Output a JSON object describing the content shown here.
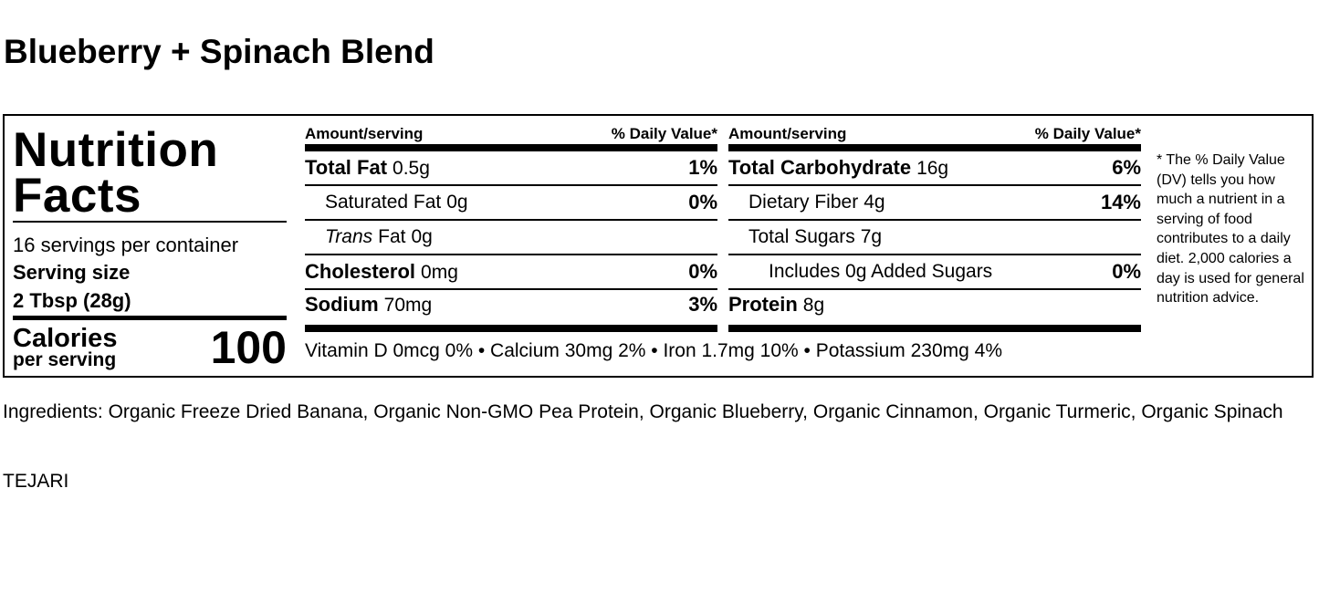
{
  "title": "Blueberry + Spinach Blend",
  "label": {
    "heading_1": "Nutrition",
    "heading_2": "Facts",
    "servings": "16 servings per container",
    "serving_size_label": "Serving size",
    "serving_size": "2 Tbsp (28g)",
    "calories_label": "Calories",
    "calories_sub": "per serving",
    "calories": 100,
    "columns": [
      {
        "header": "Amount/serving",
        "dv_header": "% Daily Value*",
        "rows": [
          {
            "name": "Total Fat",
            "amount": "0.5g",
            "dv": "1%",
            "level": 0
          },
          {
            "name": "Saturated Fat",
            "amount": "0g",
            "dv": "0%",
            "level": 1
          },
          {
            "italic_prefix": "Trans",
            "name": "Fat",
            "amount": "0g",
            "level": 1
          },
          {
            "name": "Cholesterol",
            "amount": "0mg",
            "dv": "0%",
            "level": 0
          },
          {
            "name": "Sodium",
            "amount": "70mg",
            "dv": "3%",
            "level": 0
          }
        ]
      },
      {
        "header": "Amount/serving",
        "dv_header": "% Daily Value*",
        "rows": [
          {
            "name": "Total Carbohydrate",
            "amount": "16g",
            "dv": "6%",
            "level": 0
          },
          {
            "name": "Dietary Fiber",
            "amount": "4g",
            "dv": "14%",
            "level": 1
          },
          {
            "name": "Total Sugars",
            "amount": "7g",
            "level": 1
          },
          {
            "name": "Includes 0g Added Sugars",
            "dv": "0%",
            "level": 2
          },
          {
            "name": "Protein",
            "amount": "8g",
            "level": 0
          }
        ]
      }
    ],
    "micronutrients": "Vitamin D 0mcg 0% • Calcium 30mg 2% • Iron 1.7mg 10% • Potassium 230mg 4%",
    "footnote": "* The % Daily Value (DV) tells you how much a nutrient in a serving of food contributes to a daily diet. 2,000 calories a day is used for general nutrition advice."
  },
  "ingredients": "Ingredients: Organic Freeze Dried Banana, Organic Non-GMO Pea Protein, Organic Blueberry, Organic Cinnamon, Organic Turmeric, Organic Spinach",
  "brand": "TEJARI"
}
